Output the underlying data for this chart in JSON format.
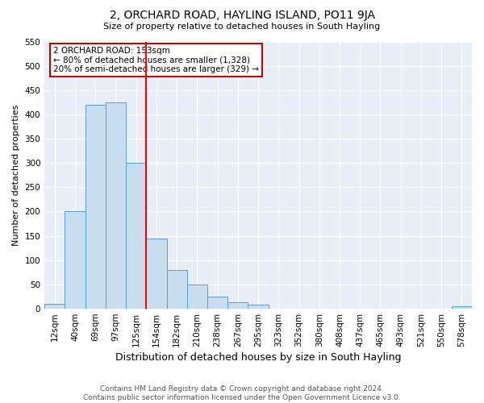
{
  "title": "2, ORCHARD ROAD, HAYLING ISLAND, PO11 9JA",
  "subtitle": "Size of property relative to detached houses in South Hayling",
  "xlabel": "Distribution of detached houses by size in South Hayling",
  "ylabel": "Number of detached properties",
  "bin_labels": [
    "12sqm",
    "40sqm",
    "69sqm",
    "97sqm",
    "125sqm",
    "154sqm",
    "182sqm",
    "210sqm",
    "238sqm",
    "267sqm",
    "295sqm",
    "323sqm",
    "352sqm",
    "380sqm",
    "408sqm",
    "437sqm",
    "465sqm",
    "493sqm",
    "521sqm",
    "550sqm",
    "578sqm"
  ],
  "bar_values": [
    10,
    200,
    420,
    425,
    300,
    145,
    80,
    50,
    25,
    13,
    8,
    0,
    0,
    0,
    0,
    0,
    0,
    0,
    0,
    0,
    5
  ],
  "bar_color": "#c8ddf0",
  "bar_edge_color": "#5b9bd5",
  "red_line_index": 5,
  "annotation_title": "2 ORCHARD ROAD: 153sqm",
  "annotation_line1": "← 80% of detached houses are smaller (1,328)",
  "annotation_line2": "20% of semi-detached houses are larger (329) →",
  "annotation_box_facecolor": "#ffffff",
  "annotation_box_edgecolor": "#cc0000",
  "ylim": [
    0,
    550
  ],
  "yticks": [
    0,
    50,
    100,
    150,
    200,
    250,
    300,
    350,
    400,
    450,
    500,
    550
  ],
  "footer_line1": "Contains HM Land Registry data © Crown copyright and database right 2024.",
  "footer_line2": "Contains public sector information licensed under the Open Government Licence v3.0.",
  "bg_color": "#ffffff",
  "plot_bg_color": "#e8eef8",
  "grid_color": "#ffffff",
  "title_fontsize": 10,
  "subtitle_fontsize": 8,
  "xlabel_fontsize": 9,
  "ylabel_fontsize": 8,
  "tick_fontsize": 7.5,
  "annotation_fontsize": 7.5,
  "footer_fontsize": 6.5
}
